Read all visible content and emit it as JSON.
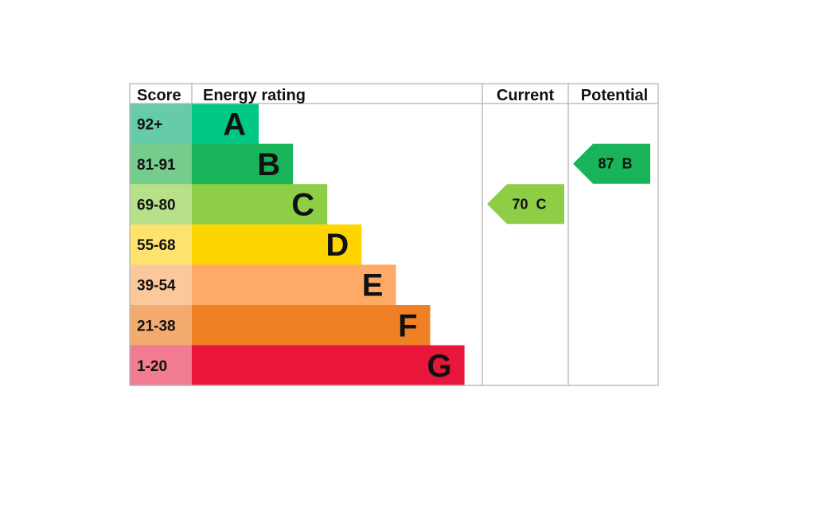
{
  "headers": {
    "score": "Score",
    "rating": "Energy rating",
    "current": "Current",
    "potential": "Potential"
  },
  "chart_data": {
    "type": "bar",
    "bands": [
      {
        "letter": "A",
        "range": "92+",
        "min": 92,
        "max": 100,
        "color": "#00c781",
        "light": "#66cca8"
      },
      {
        "letter": "B",
        "range": "81-91",
        "min": 81,
        "max": 91,
        "color": "#19b459",
        "light": "#75cc8c"
      },
      {
        "letter": "C",
        "range": "69-80",
        "min": 69,
        "max": 80,
        "color": "#8dce46",
        "light": "#b7e08b"
      },
      {
        "letter": "D",
        "range": "55-68",
        "min": 55,
        "max": 68,
        "color": "#ffd500",
        "light": "#fde36e"
      },
      {
        "letter": "E",
        "range": "39-54",
        "min": 39,
        "max": 54,
        "color": "#fcaa65",
        "light": "#fbc89c"
      },
      {
        "letter": "F",
        "range": "21-38",
        "min": 21,
        "max": 38,
        "color": "#ef8023",
        "light": "#f3ab70"
      },
      {
        "letter": "G",
        "range": "1-20",
        "min": 1,
        "max": 20,
        "color": "#e9153b",
        "light": "#f17b8f"
      }
    ],
    "current": {
      "score": 70,
      "band": "C",
      "label": "70  C",
      "color": "#8dce46"
    },
    "potential": {
      "score": 87,
      "band": "B",
      "label": "87  B",
      "color": "#19b459"
    }
  }
}
